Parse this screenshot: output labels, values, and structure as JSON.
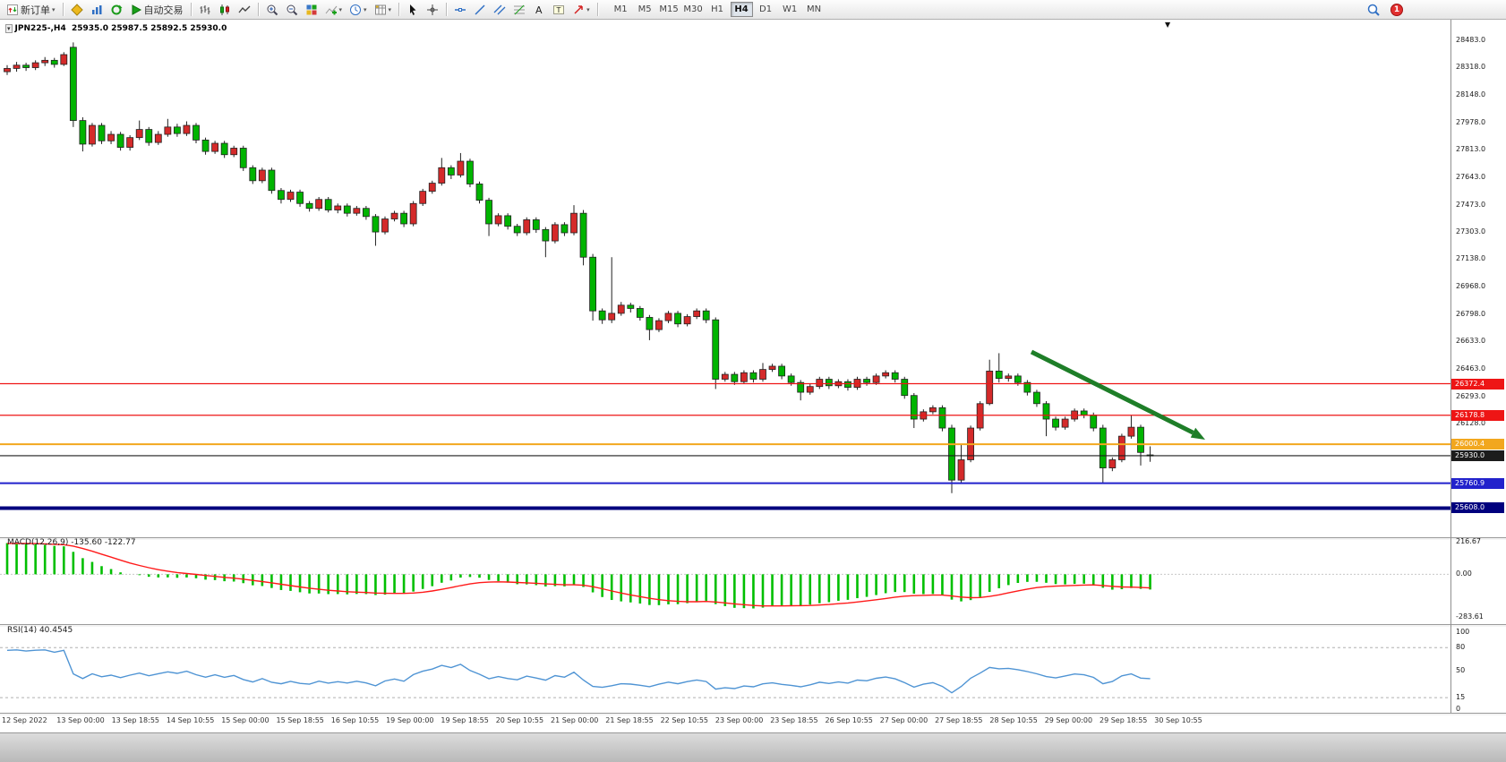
{
  "toolbar": {
    "buttons": [
      {
        "name": "new-order",
        "label": "新订单",
        "caret": true
      },
      {
        "sep": true
      },
      {
        "name": "metaeditor"
      },
      {
        "name": "market-watch"
      },
      {
        "name": "refresh"
      },
      {
        "name": "auto-trading",
        "label": "自动交易"
      },
      {
        "sep": true
      },
      {
        "name": "bar-chart"
      },
      {
        "name": "candle-chart"
      },
      {
        "name": "line-chart"
      },
      {
        "sep": true
      },
      {
        "name": "zoom-in"
      },
      {
        "name": "zoom-out"
      },
      {
        "name": "tile-windows"
      },
      {
        "name": "indicators",
        "caret": true
      },
      {
        "name": "periods",
        "caret": true
      },
      {
        "name": "templates",
        "caret": true
      },
      {
        "sep": true
      },
      {
        "name": "cursor"
      },
      {
        "name": "crosshair"
      },
      {
        "sep": true
      },
      {
        "name": "horizontal-line"
      },
      {
        "name": "trendline"
      },
      {
        "name": "channel"
      },
      {
        "name": "fibonacci"
      },
      {
        "name": "text"
      },
      {
        "name": "text-label"
      },
      {
        "name": "arrows",
        "caret": true
      },
      {
        "sep": true
      }
    ],
    "timeframes": [
      "M1",
      "M5",
      "M15",
      "M30",
      "H1",
      "H4",
      "D1",
      "W1",
      "MN"
    ],
    "active_timeframe": "H4",
    "notification_count": "1"
  },
  "chart_header": {
    "symbol_ohlc": "JPN225-,H4  25935.0 25987.5 25892.5 25930.0"
  },
  "chart_data": [
    {
      "type": "candlestick",
      "symbol": "JPN225-",
      "timeframe": "H4",
      "current_bar": {
        "open": 25935.0,
        "high": 25987.5,
        "low": 25892.5,
        "close": 25930.0
      },
      "ylim": [
        25560,
        28500
      ],
      "up_color": "#d42a2a",
      "down_color": "#00b400",
      "y_axis_labels": [
        "28483.0",
        "28318.0",
        "28148.0",
        "27978.0",
        "27813.0",
        "27643.0",
        "27473.0",
        "27303.0",
        "27138.0",
        "26968.0",
        "26798.0",
        "26633.0",
        "26463.0",
        "26293.0",
        "26128.0"
      ],
      "x_axis_labels": [
        "12 Sep 2022",
        "13 Sep 00:00",
        "13 Sep 18:55",
        "14 Sep 10:55",
        "15 Sep 00:00",
        "15 Sep 18:55",
        "16 Sep 10:55",
        "19 Sep 00:00",
        "19 Sep 18:55",
        "20 Sep 10:55",
        "21 Sep 00:00",
        "21 Sep 18:55",
        "22 Sep 10:55",
        "23 Sep 00:00",
        "23 Sep 18:55",
        "26 Sep 10:55",
        "27 Sep 00:00",
        "27 Sep 18:55",
        "28 Sep 10:55",
        "29 Sep 00:00",
        "29 Sep 18:55",
        "30 Sep 10:55"
      ],
      "price_lines": [
        {
          "value": 26372.4,
          "label": "26372.4",
          "color": "#ee1515",
          "width": 1.3
        },
        {
          "value": 26178.8,
          "label": "26178.8",
          "color": "#ee1515",
          "width": 1.3
        },
        {
          "value": 26000.4,
          "label": "26000.4",
          "color": "#f2a71e",
          "width": 2
        },
        {
          "value": 25930.0,
          "label": "25930.0",
          "color": "#1c1c1c",
          "width": 1.2
        },
        {
          "value": 25760.9,
          "label": "25760.9",
          "color": "#2222cc",
          "width": 2
        },
        {
          "value": 25608.0,
          "label": "25608.0",
          "color": "#00007e",
          "width": 4
        }
      ],
      "annotation_arrow": {
        "color": "#1e7e28"
      },
      "ohlc": [
        [
          28290,
          28330,
          28270,
          28310
        ],
        [
          28310,
          28350,
          28290,
          28330
        ],
        [
          28330,
          28345,
          28295,
          28315
        ],
        [
          28315,
          28360,
          28300,
          28345
        ],
        [
          28345,
          28380,
          28325,
          28360
        ],
        [
          28360,
          28375,
          28315,
          28335
        ],
        [
          28335,
          28410,
          28325,
          28395
        ],
        [
          28440,
          28470,
          27950,
          27990
        ],
        [
          27990,
          28010,
          27800,
          27845
        ],
        [
          27845,
          27975,
          27830,
          27960
        ],
        [
          27960,
          27975,
          27845,
          27865
        ],
        [
          27865,
          27925,
          27845,
          27905
        ],
        [
          27905,
          27920,
          27805,
          27825
        ],
        [
          27825,
          27900,
          27805,
          27885
        ],
        [
          27885,
          27990,
          27870,
          27935
        ],
        [
          27935,
          27950,
          27835,
          27855
        ],
        [
          27855,
          27925,
          27840,
          27905
        ],
        [
          27905,
          28000,
          27890,
          27950
        ],
        [
          27950,
          27970,
          27890,
          27910
        ],
        [
          27910,
          27985,
          27895,
          27960
        ],
        [
          27960,
          27975,
          27850,
          27870
        ],
        [
          27870,
          27885,
          27780,
          27800
        ],
        [
          27800,
          27865,
          27785,
          27850
        ],
        [
          27850,
          27865,
          27760,
          27780
        ],
        [
          27780,
          27835,
          27765,
          27820
        ],
        [
          27820,
          27835,
          27680,
          27700
        ],
        [
          27700,
          27715,
          27600,
          27620
        ],
        [
          27620,
          27700,
          27605,
          27685
        ],
        [
          27685,
          27700,
          27540,
          27560
        ],
        [
          27560,
          27575,
          27480,
          27505
        ],
        [
          27505,
          27565,
          27490,
          27550
        ],
        [
          27550,
          27565,
          27460,
          27480
        ],
        [
          27480,
          27495,
          27430,
          27450
        ],
        [
          27450,
          27520,
          27435,
          27505
        ],
        [
          27505,
          27520,
          27425,
          27440
        ],
        [
          27440,
          27480,
          27420,
          27465
        ],
        [
          27465,
          27480,
          27400,
          27420
        ],
        [
          27420,
          27465,
          27405,
          27450
        ],
        [
          27450,
          27465,
          27380,
          27400
        ],
        [
          27400,
          27415,
          27220,
          27305
        ],
        [
          27305,
          27400,
          27290,
          27385
        ],
        [
          27385,
          27435,
          27370,
          27420
        ],
        [
          27420,
          27435,
          27335,
          27355
        ],
        [
          27355,
          27495,
          27340,
          27480
        ],
        [
          27480,
          27570,
          27465,
          27555
        ],
        [
          27555,
          27620,
          27540,
          27605
        ],
        [
          27605,
          27760,
          27590,
          27700
        ],
        [
          27700,
          27715,
          27630,
          27655
        ],
        [
          27655,
          27790,
          27640,
          27740
        ],
        [
          27740,
          27755,
          27580,
          27600
        ],
        [
          27600,
          27615,
          27480,
          27500
        ],
        [
          27500,
          27515,
          27280,
          27355
        ],
        [
          27355,
          27420,
          27340,
          27405
        ],
        [
          27405,
          27420,
          27320,
          27340
        ],
        [
          27340,
          27355,
          27280,
          27300
        ],
        [
          27300,
          27395,
          27285,
          27380
        ],
        [
          27380,
          27395,
          27300,
          27320
        ],
        [
          27320,
          27335,
          27150,
          27250
        ],
        [
          27250,
          27365,
          27235,
          27350
        ],
        [
          27350,
          27365,
          27280,
          27300
        ],
        [
          27300,
          27470,
          27285,
          27420
        ],
        [
          27420,
          27440,
          27100,
          27150
        ],
        [
          27150,
          27170,
          26760,
          26820
        ],
        [
          26820,
          26835,
          26740,
          26765
        ],
        [
          26765,
          27150,
          26745,
          26805
        ],
        [
          26805,
          26875,
          26790,
          26855
        ],
        [
          26855,
          26870,
          26810,
          26835
        ],
        [
          26835,
          26850,
          26760,
          26780
        ],
        [
          26780,
          26795,
          26640,
          26705
        ],
        [
          26705,
          26775,
          26690,
          26760
        ],
        [
          26760,
          26820,
          26745,
          26805
        ],
        [
          26805,
          26820,
          26720,
          26740
        ],
        [
          26740,
          26800,
          26725,
          26785
        ],
        [
          26785,
          26835,
          26770,
          26820
        ],
        [
          26820,
          26835,
          26745,
          26765
        ],
        [
          26765,
          26780,
          26340,
          26400
        ],
        [
          26400,
          26445,
          26385,
          26430
        ],
        [
          26430,
          26445,
          26365,
          26385
        ],
        [
          26385,
          26455,
          26370,
          26440
        ],
        [
          26440,
          26455,
          26380,
          26400
        ],
        [
          26400,
          26500,
          26385,
          26460
        ],
        [
          26460,
          26495,
          26445,
          26480
        ],
        [
          26480,
          26495,
          26400,
          26420
        ],
        [
          26420,
          26435,
          26360,
          26380
        ],
        [
          26380,
          26395,
          26270,
          26320
        ],
        [
          26320,
          26370,
          26305,
          26355
        ],
        [
          26355,
          26415,
          26340,
          26400
        ],
        [
          26400,
          26415,
          26340,
          26360
        ],
        [
          26360,
          26400,
          26345,
          26385
        ],
        [
          26385,
          26400,
          26330,
          26350
        ],
        [
          26350,
          26415,
          26335,
          26400
        ],
        [
          26400,
          26415,
          26360,
          26380
        ],
        [
          26380,
          26435,
          26365,
          26420
        ],
        [
          26420,
          26455,
          26405,
          26440
        ],
        [
          26440,
          26455,
          26380,
          26400
        ],
        [
          26400,
          26415,
          26280,
          26300
        ],
        [
          26300,
          26315,
          26100,
          26155
        ],
        [
          26155,
          26215,
          26140,
          26200
        ],
        [
          26200,
          26240,
          26185,
          26225
        ],
        [
          26225,
          26240,
          26080,
          26100
        ],
        [
          26100,
          26120,
          25700,
          25780
        ],
        [
          25780,
          26000,
          25765,
          25905
        ],
        [
          25905,
          26115,
          25890,
          26100
        ],
        [
          26100,
          26265,
          26085,
          26250
        ],
        [
          26250,
          26520,
          26240,
          26450
        ],
        [
          26450,
          26560,
          26380,
          26405
        ],
        [
          26405,
          26435,
          26385,
          26420
        ],
        [
          26420,
          26435,
          26360,
          26380
        ],
        [
          26380,
          26395,
          26300,
          26320
        ],
        [
          26320,
          26335,
          26230,
          26250
        ],
        [
          26250,
          26265,
          26050,
          26155
        ],
        [
          26155,
          26170,
          26085,
          26105
        ],
        [
          26105,
          26170,
          26090,
          26155
        ],
        [
          26155,
          26220,
          26140,
          26205
        ],
        [
          26205,
          26220,
          26160,
          26180
        ],
        [
          26180,
          26195,
          26080,
          26100
        ],
        [
          26100,
          26120,
          25760,
          25855
        ],
        [
          25855,
          25920,
          25835,
          25905
        ],
        [
          25905,
          26065,
          25890,
          26050
        ],
        [
          26050,
          26180,
          26035,
          26105
        ],
        [
          26105,
          26120,
          25870,
          25950
        ],
        [
          25935,
          25987.5,
          25892.5,
          25930
        ]
      ]
    },
    {
      "type": "macd",
      "indicator_label": "MACD(12,26,9) -135.60 -122.77",
      "params": [
        12,
        26,
        9
      ],
      "main_value": -135.6,
      "signal_value": -122.77,
      "scale_labels": [
        "216.67",
        "0.00",
        "-283.61"
      ],
      "scale_values": [
        216.67,
        0,
        -283.61
      ],
      "histogram_color": "#00bf00",
      "signal_color": "#ff1a1a"
    },
    {
      "type": "rsi",
      "indicator_label": "RSI(14) 40.4545",
      "period": 14,
      "value": 40.4545,
      "scale_labels": [
        "100",
        "80",
        "50",
        "15",
        "0"
      ],
      "scale_values": [
        100,
        80,
        50,
        15,
        0
      ],
      "level_lines": [
        80,
        15
      ],
      "line_color": "#4f94d4"
    }
  ]
}
